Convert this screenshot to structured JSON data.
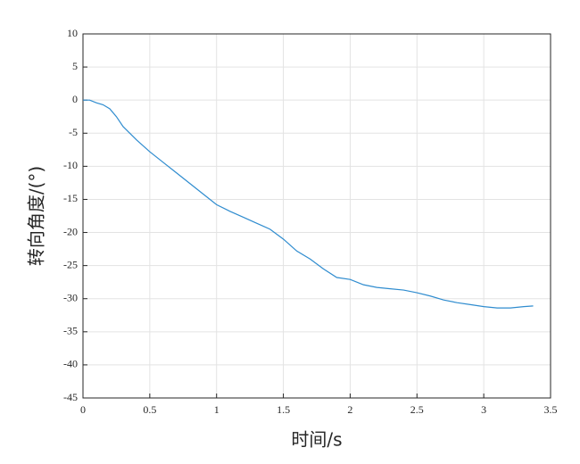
{
  "chart_data": {
    "type": "line",
    "xlabel": "时间/s",
    "ylabel": "转向角度/(°)",
    "x": [
      0,
      0.05,
      0.1,
      0.15,
      0.2,
      0.25,
      0.3,
      0.4,
      0.5,
      0.6,
      0.7,
      0.8,
      0.9,
      1.0,
      1.1,
      1.2,
      1.3,
      1.4,
      1.5,
      1.6,
      1.7,
      1.8,
      1.9,
      2.0,
      2.1,
      2.2,
      2.3,
      2.4,
      2.5,
      2.6,
      2.7,
      2.8,
      2.9,
      3.0,
      3.1,
      3.2,
      3.3,
      3.37
    ],
    "series": [
      {
        "color": "#2f8ccf",
        "values": [
          0,
          0,
          -0.4,
          -0.7,
          -1.3,
          -2.5,
          -4,
          -6,
          -7.8,
          -9.4,
          -11,
          -12.6,
          -14.2,
          -15.8,
          -16.8,
          -17.7,
          -18.6,
          -19.5,
          -21,
          -22.8,
          -24,
          -25.5,
          -26.8,
          -27.1,
          -27.9,
          -28.3,
          -28.5,
          -28.7,
          -29.1,
          -29.6,
          -30.2,
          -30.6,
          -30.9,
          -31.2,
          -31.4,
          -31.4,
          -31.2,
          -31.1
        ]
      }
    ],
    "xlim": [
      0,
      3.5
    ],
    "xticks": [
      0,
      0.5,
      1,
      1.5,
      2,
      2.5,
      3,
      3.5
    ],
    "ylim": [
      -45,
      10
    ],
    "yticks": [
      10,
      5,
      0,
      -5,
      -10,
      -15,
      -20,
      -25,
      -30,
      -35,
      -40,
      -45
    ],
    "grid": true
  }
}
